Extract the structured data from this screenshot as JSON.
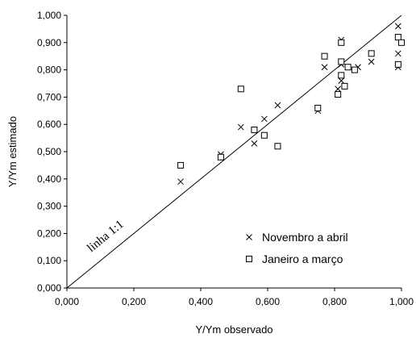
{
  "chart_data": {
    "type": "scatter",
    "xlabel": "Y/Ym observado",
    "ylabel": "Y/Ym estimado",
    "xlim": [
      0,
      1
    ],
    "ylim": [
      0,
      1
    ],
    "x_ticks": [
      "0,000",
      "0,200",
      "0,400",
      "0,600",
      "0,800",
      "1,000"
    ],
    "y_ticks": [
      "0,000",
      "0,100",
      "0,200",
      "0,300",
      "0,400",
      "0,500",
      "0,600",
      "0,700",
      "0,800",
      "0,900",
      "1,000"
    ],
    "reference_line": {
      "label": "linha 1:1",
      "from": [
        0,
        0
      ],
      "to": [
        1,
        1
      ]
    },
    "legend_position": "bottom-right",
    "series": [
      {
        "name": "Novembro a abril",
        "marker": "x",
        "points": [
          [
            0.34,
            0.39
          ],
          [
            0.46,
            0.49
          ],
          [
            0.52,
            0.59
          ],
          [
            0.56,
            0.53
          ],
          [
            0.59,
            0.62
          ],
          [
            0.63,
            0.67
          ],
          [
            0.75,
            0.65
          ],
          [
            0.77,
            0.81
          ],
          [
            0.81,
            0.73
          ],
          [
            0.82,
            0.91
          ],
          [
            0.82,
            0.82
          ],
          [
            0.82,
            0.76
          ],
          [
            0.87,
            0.81
          ],
          [
            0.91,
            0.83
          ],
          [
            0.99,
            0.96
          ],
          [
            0.99,
            0.86
          ],
          [
            0.99,
            0.81
          ]
        ]
      },
      {
        "name": "Janeiro a março",
        "marker": "square",
        "points": [
          [
            0.34,
            0.45
          ],
          [
            0.46,
            0.48
          ],
          [
            0.52,
            0.73
          ],
          [
            0.56,
            0.58
          ],
          [
            0.59,
            0.56
          ],
          [
            0.63,
            0.52
          ],
          [
            0.75,
            0.66
          ],
          [
            0.77,
            0.85
          ],
          [
            0.81,
            0.71
          ],
          [
            0.82,
            0.9
          ],
          [
            0.82,
            0.83
          ],
          [
            0.82,
            0.78
          ],
          [
            0.83,
            0.74
          ],
          [
            0.84,
            0.81
          ],
          [
            0.86,
            0.8
          ],
          [
            0.91,
            0.86
          ],
          [
            0.99,
            0.92
          ],
          [
            0.99,
            0.82
          ],
          [
            1.0,
            0.9
          ]
        ]
      }
    ]
  }
}
